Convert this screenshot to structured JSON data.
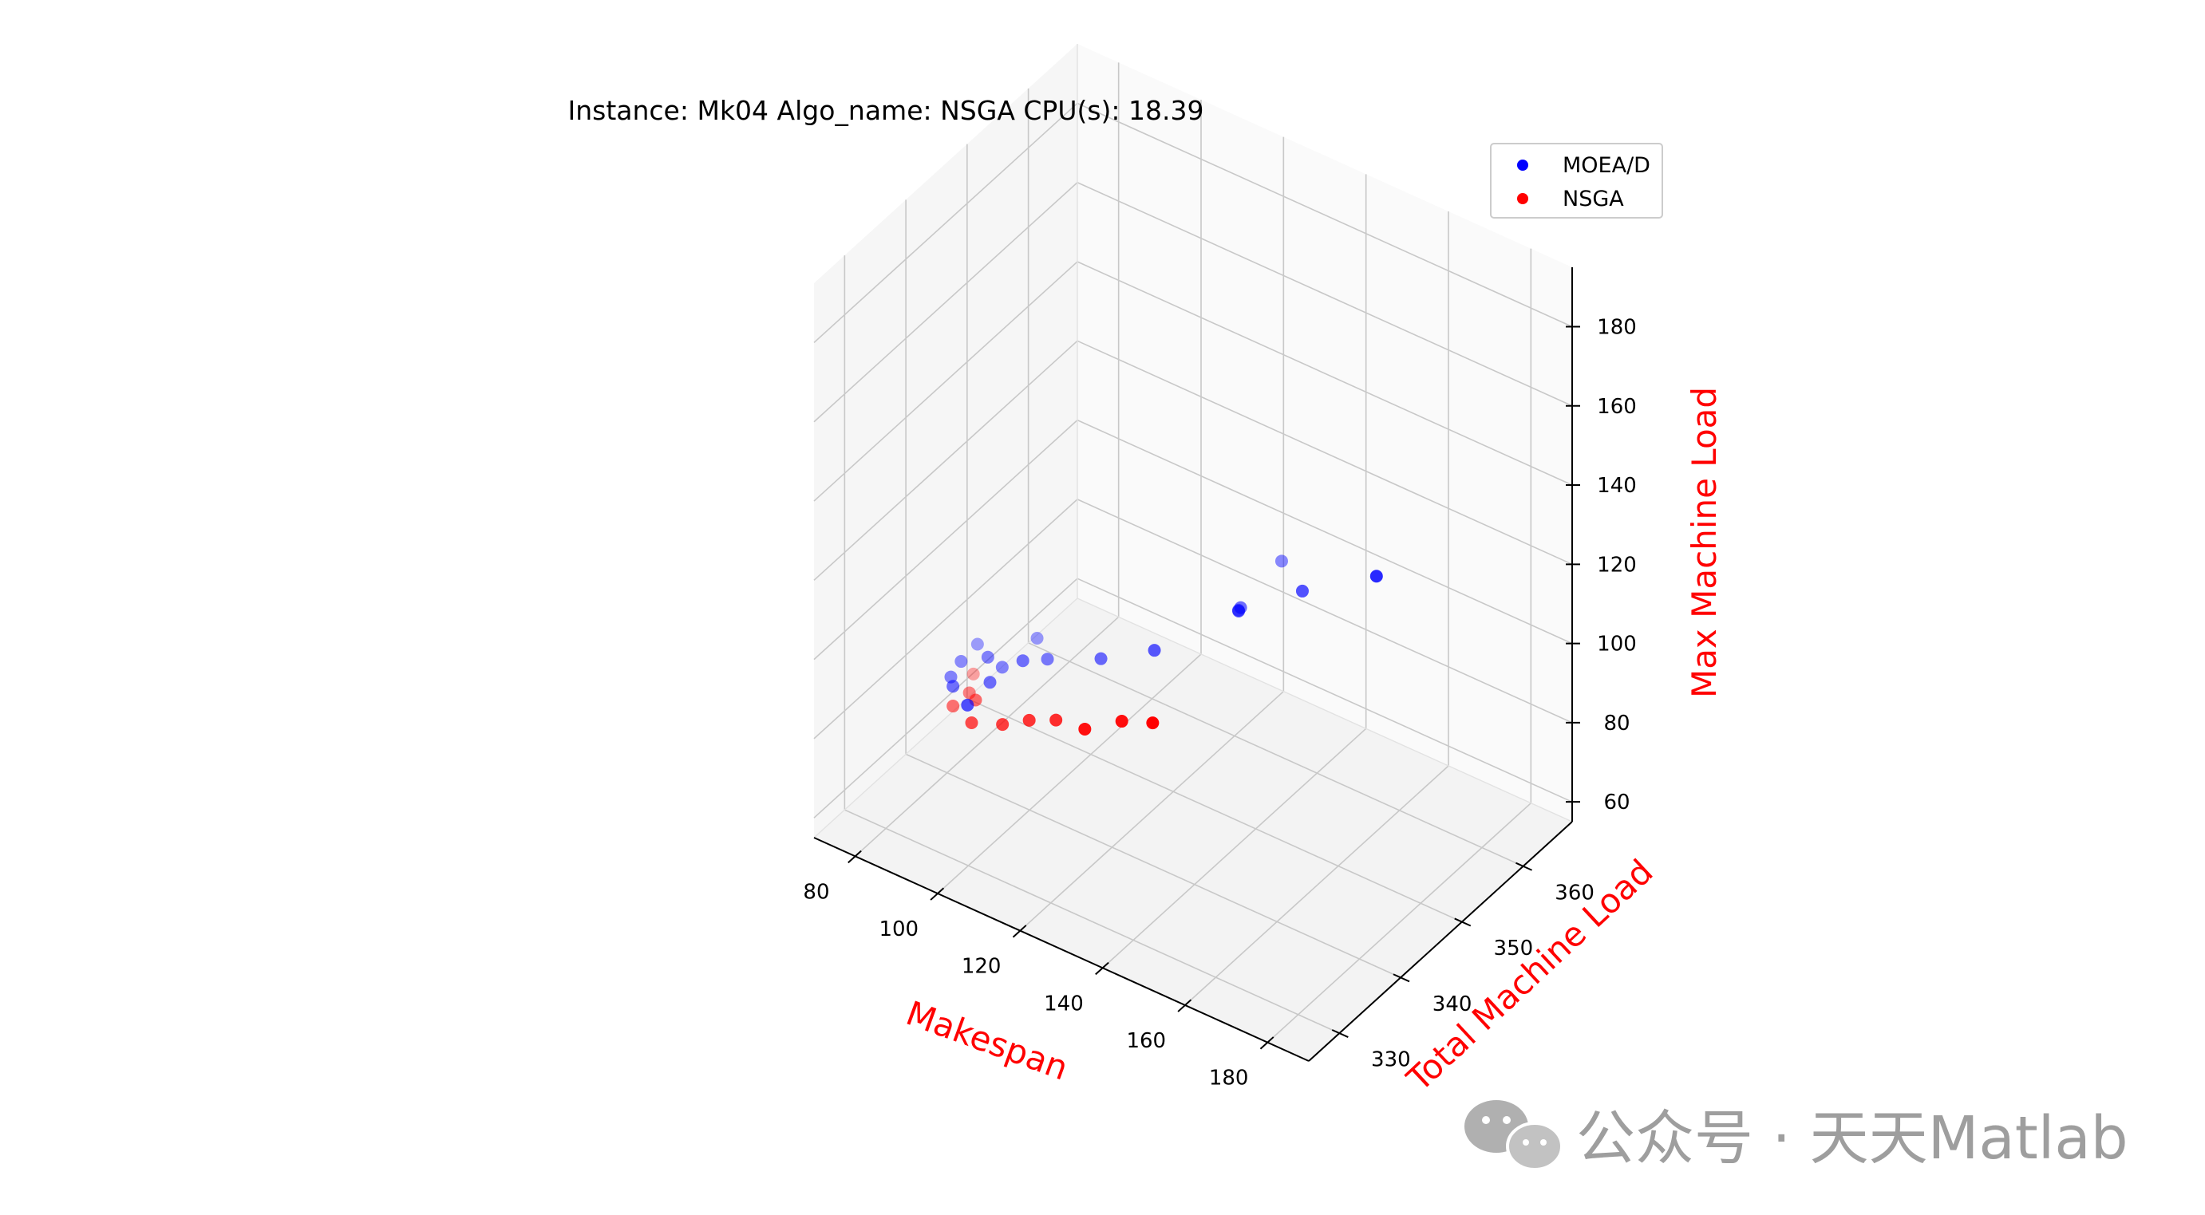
{
  "chart_data": {
    "type": "scatter",
    "projection": "3d",
    "title": "Instance: Mk04 Algo_name: NSGA CPU(s): 18.39",
    "xlabel": "Makespan",
    "ylabel": "Total Machine Load",
    "zlabel": "Max Machine Load",
    "axis_label_color": "#ff0000",
    "xlim": [
      70,
      190
    ],
    "ylim": [
      325,
      368
    ],
    "zlim": [
      55,
      195
    ],
    "x_ticks": [
      80,
      100,
      120,
      140,
      160,
      180
    ],
    "y_ticks": [
      330,
      340,
      350,
      360
    ],
    "z_ticks": [
      60,
      80,
      100,
      120,
      140,
      160,
      180
    ],
    "grid": true,
    "legend_position": "top-right",
    "series": [
      {
        "name": "MOEA/D",
        "color": "#0000ff",
        "points": [
          [
            72,
            346,
            67
          ],
          [
            73,
            347,
            70
          ],
          [
            74,
            349,
            72
          ],
          [
            74,
            345,
            67
          ],
          [
            78,
            348,
            72
          ],
          [
            79,
            344,
            66
          ],
          [
            80,
            347,
            68
          ],
          [
            80,
            349,
            69
          ],
          [
            84,
            352,
            74
          ],
          [
            85,
            349,
            73
          ],
          [
            88,
            351,
            72
          ],
          [
            98,
            353,
            74
          ],
          [
            108,
            355,
            78
          ],
          [
            118,
            362,
            83
          ],
          [
            120,
            361,
            86
          ],
          [
            121,
            360,
            87
          ],
          [
            124,
            365,
            94
          ],
          [
            132,
            363,
            93
          ],
          [
            147,
            365,
            101
          ]
        ]
      },
      {
        "name": "NSGA",
        "color": "#ff0000",
        "points": [
          [
            73,
            349,
            64
          ],
          [
            74,
            345,
            62
          ],
          [
            75,
            347,
            63
          ],
          [
            78,
            346,
            64
          ],
          [
            80,
            344,
            62
          ],
          [
            86,
            345,
            63
          ],
          [
            91,
            346,
            65
          ],
          [
            96,
            347,
            66
          ],
          [
            103,
            347,
            67
          ],
          [
            109,
            349,
            69
          ],
          [
            115,
            350,
            70
          ]
        ]
      }
    ]
  },
  "watermark": {
    "text": "公众号 · 天天Matlab",
    "icon": "wechat-icon",
    "color": "#9e9e9e"
  }
}
